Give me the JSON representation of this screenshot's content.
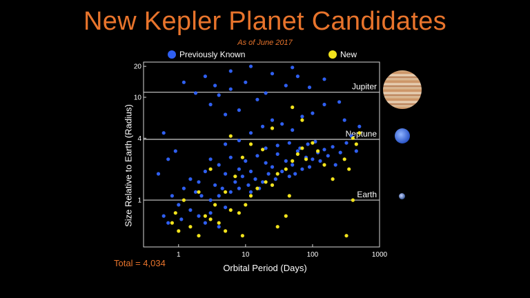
{
  "title": "New Kepler Planet Candidates",
  "subtitle": "As of June 2017",
  "legend": {
    "previous": {
      "label": "Previously Known",
      "color": "#2f5ff0"
    },
    "new": {
      "label": "New",
      "color": "#f2e31c"
    }
  },
  "total_label": "Total = 4,034",
  "planet_icons": [
    "jupiter-image",
    "neptune-image",
    "earth-image"
  ],
  "chart_data": {
    "type": "scatter",
    "xlabel": "Orbital Period (Days)",
    "ylabel": "Size Relative to Earth (Radius)",
    "x_scale": "log",
    "y_scale": "log",
    "xlim": [
      0.3,
      1000
    ],
    "ylim": [
      0.35,
      22
    ],
    "x_ticks": [
      1,
      10,
      100,
      1000
    ],
    "y_ticks": [
      1,
      4,
      10,
      20
    ],
    "reference_lines": [
      {
        "label": "Jupiter",
        "y": 11.2
      },
      {
        "label": "Neptune",
        "y": 3.9
      },
      {
        "label": "Earth",
        "y": 1
      }
    ],
    "series": [
      {
        "name": "Previously Known",
        "color": "#2f5ff0",
        "points": [
          [
            3,
            2.5
          ],
          [
            4,
            2.2
          ],
          [
            5,
            1.8
          ],
          [
            6,
            2.6
          ],
          [
            8,
            2.0
          ],
          [
            10,
            2.4
          ],
          [
            12,
            1.9
          ],
          [
            15,
            2.7
          ],
          [
            20,
            2.3
          ],
          [
            25,
            2.1
          ],
          [
            30,
            2.8
          ],
          [
            40,
            2.4
          ],
          [
            50,
            2.2
          ],
          [
            60,
            3.0
          ],
          [
            80,
            2.6
          ],
          [
            100,
            2.5
          ],
          [
            120,
            2.9
          ],
          [
            150,
            3.1
          ],
          [
            200,
            3.3
          ],
          [
            1.5,
            1.6
          ],
          [
            2,
            1.5
          ],
          [
            2.5,
            1.9
          ],
          [
            3.5,
            1.4
          ],
          [
            4.5,
            1.3
          ],
          [
            7,
            1.5
          ],
          [
            9,
            1.7
          ],
          [
            11,
            1.4
          ],
          [
            14,
            1.6
          ],
          [
            18,
            1.5
          ],
          [
            22,
            1.8
          ],
          [
            28,
            1.6
          ],
          [
            35,
            1.9
          ],
          [
            45,
            1.7
          ],
          [
            55,
            1.8
          ],
          [
            70,
            2.0
          ],
          [
            90,
            2.1
          ],
          [
            1.2,
            1.3
          ],
          [
            1.8,
            1.2
          ],
          [
            2.2,
            1.1
          ],
          [
            3,
            1.0
          ],
          [
            4,
            1.1
          ],
          [
            6,
            1.2
          ],
          [
            8,
            1.3
          ],
          [
            12,
            1.2
          ],
          [
            16,
            1.3
          ],
          [
            25,
            1.4
          ],
          [
            0.8,
            1.1
          ],
          [
            1,
            0.9
          ],
          [
            1.5,
            0.8
          ],
          [
            2,
            0.7
          ],
          [
            3,
            0.75
          ],
          [
            5,
            0.85
          ],
          [
            0.6,
            0.7
          ],
          [
            0.7,
            0.6
          ],
          [
            1.1,
            0.65
          ],
          [
            2.5,
            0.6
          ],
          [
            4,
            0.55
          ],
          [
            5,
            3.5
          ],
          [
            8,
            3.8
          ],
          [
            12,
            4.5
          ],
          [
            18,
            5.2
          ],
          [
            25,
            6.0
          ],
          [
            35,
            5.5
          ],
          [
            50,
            4.8
          ],
          [
            70,
            6.5
          ],
          [
            100,
            7.0
          ],
          [
            150,
            8.5
          ],
          [
            250,
            9.0
          ],
          [
            300,
            6.0
          ],
          [
            4,
            10.5
          ],
          [
            6,
            12.0
          ],
          [
            10,
            14.0
          ],
          [
            15,
            9.5
          ],
          [
            20,
            11.0
          ],
          [
            40,
            13.0
          ],
          [
            60,
            16.0
          ],
          [
            90,
            12.5
          ],
          [
            150,
            15.0
          ],
          [
            3,
            8.5
          ],
          [
            5,
            6.8
          ],
          [
            8,
            7.5
          ],
          [
            2.5,
            16.0
          ],
          [
            3.5,
            13.0
          ],
          [
            6,
            18.0
          ],
          [
            12,
            20.0
          ],
          [
            25,
            17.0
          ],
          [
            50,
            19.5
          ],
          [
            1.2,
            14.0
          ],
          [
            1.8,
            11.0
          ],
          [
            20,
            3.2
          ],
          [
            30,
            3.4
          ],
          [
            45,
            3.6
          ],
          [
            65,
            3.2
          ],
          [
            85,
            3.5
          ],
          [
            110,
            3.7
          ],
          [
            130,
            2.4
          ],
          [
            170,
            2.7
          ],
          [
            220,
            2.2
          ],
          [
            260,
            2.9
          ],
          [
            320,
            3.6
          ],
          [
            380,
            4.2
          ],
          [
            450,
            3.0
          ],
          [
            500,
            5.2
          ],
          [
            0.5,
            1.8
          ],
          [
            0.7,
            2.5
          ],
          [
            0.9,
            3.0
          ],
          [
            0.6,
            4.5
          ]
        ]
      },
      {
        "name": "New",
        "color": "#f2e31c",
        "points": [
          [
            0.8,
            0.6
          ],
          [
            1,
            0.5
          ],
          [
            1.5,
            0.55
          ],
          [
            2,
            0.45
          ],
          [
            2.5,
            0.7
          ],
          [
            3,
            0.65
          ],
          [
            4,
            0.6
          ],
          [
            5,
            0.5
          ],
          [
            6,
            0.8
          ],
          [
            8,
            0.75
          ],
          [
            10,
            0.9
          ],
          [
            12,
            1.1
          ],
          [
            15,
            1.3
          ],
          [
            20,
            1.5
          ],
          [
            25,
            1.4
          ],
          [
            30,
            1.8
          ],
          [
            40,
            2.0
          ],
          [
            50,
            2.4
          ],
          [
            60,
            2.8
          ],
          [
            70,
            3.2
          ],
          [
            80,
            2.5
          ],
          [
            100,
            3.6
          ],
          [
            120,
            3.0
          ],
          [
            150,
            2.2
          ],
          [
            200,
            1.6
          ],
          [
            300,
            2.5
          ],
          [
            350,
            2.0
          ],
          [
            400,
            1.0
          ],
          [
            450,
            3.5
          ],
          [
            500,
            4.5
          ],
          [
            320,
            0.45
          ],
          [
            3,
            2.0
          ],
          [
            5,
            1.2
          ],
          [
            7,
            1.7
          ],
          [
            9,
            2.6
          ],
          [
            18,
            3.1
          ],
          [
            45,
            1.1
          ],
          [
            70,
            6.0
          ],
          [
            400,
            4.0
          ],
          [
            50,
            8.0
          ],
          [
            6,
            4.2
          ],
          [
            12,
            3.5
          ],
          [
            25,
            5.0
          ],
          [
            0.9,
            0.75
          ],
          [
            1.2,
            1.0
          ],
          [
            2,
            1.2
          ],
          [
            3.5,
            0.9
          ],
          [
            30,
            0.55
          ],
          [
            9,
            0.45
          ],
          [
            40,
            0.7
          ]
        ]
      }
    ]
  }
}
